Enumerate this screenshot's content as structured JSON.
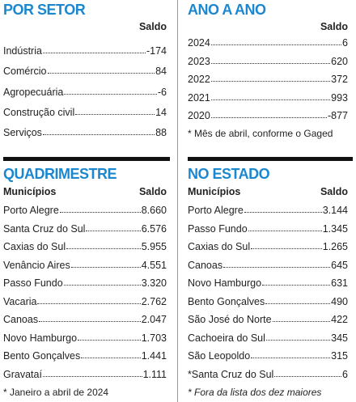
{
  "sections": [
    {
      "title": "POR SETOR",
      "value_header": "Saldo",
      "rows": [
        [
          "Indústria",
          "-174"
        ],
        [
          "Comércio",
          "84"
        ],
        [
          "Agropecuária",
          "-6"
        ],
        [
          "Construção civil",
          "14"
        ],
        [
          "Serviços",
          "88"
        ]
      ]
    },
    {
      "title": "ANO A ANO",
      "value_header": "Saldo",
      "rows": [
        [
          "2024",
          "6"
        ],
        [
          "2023",
          "620"
        ],
        [
          "2022",
          "372"
        ],
        [
          "2021",
          "993"
        ],
        [
          "2020",
          "-877"
        ]
      ],
      "note": "* Mês de abril, conforme o Gaged"
    },
    {
      "title": "QUADRIMESTRE",
      "label_header": "Municípios",
      "value_header": "Saldo",
      "rows": [
        [
          "Porto Alegre",
          "8.660"
        ],
        [
          "Santa Cruz do Sul",
          "6.576"
        ],
        [
          "Caxias do Sul",
          "5.955"
        ],
        [
          "Venâncio Aires",
          "4.551"
        ],
        [
          "Passo Fundo",
          "3.320"
        ],
        [
          "Vacaria",
          "2.762"
        ],
        [
          "Canoas",
          "2.047"
        ],
        [
          "Novo Hamburgo",
          "1.703"
        ],
        [
          "Bento Gonçalves",
          "1.441"
        ],
        [
          "Gravataí",
          "1.111"
        ]
      ],
      "note": "* Janeiro a abril de 2024"
    },
    {
      "title": "NO ESTADO",
      "label_header": "Municípios",
      "value_header": "Saldo",
      "rows": [
        [
          "Porto Alegre",
          "3.144"
        ],
        [
          "Passo Fundo",
          "1.345"
        ],
        [
          "Caxias do Sul",
          "1.265"
        ],
        [
          "Canoas",
          "645"
        ],
        [
          "Novo Hamburgo",
          "631"
        ],
        [
          "Bento Gonçalves",
          "490"
        ],
        [
          "São José do Norte",
          "422"
        ],
        [
          "Cachoeira do Sul",
          "345"
        ],
        [
          "São Leopoldo",
          "315"
        ],
        [
          "*Santa Cruz do Sul",
          "6"
        ]
      ],
      "note": "* Fora da lista dos dez maiores"
    }
  ]
}
